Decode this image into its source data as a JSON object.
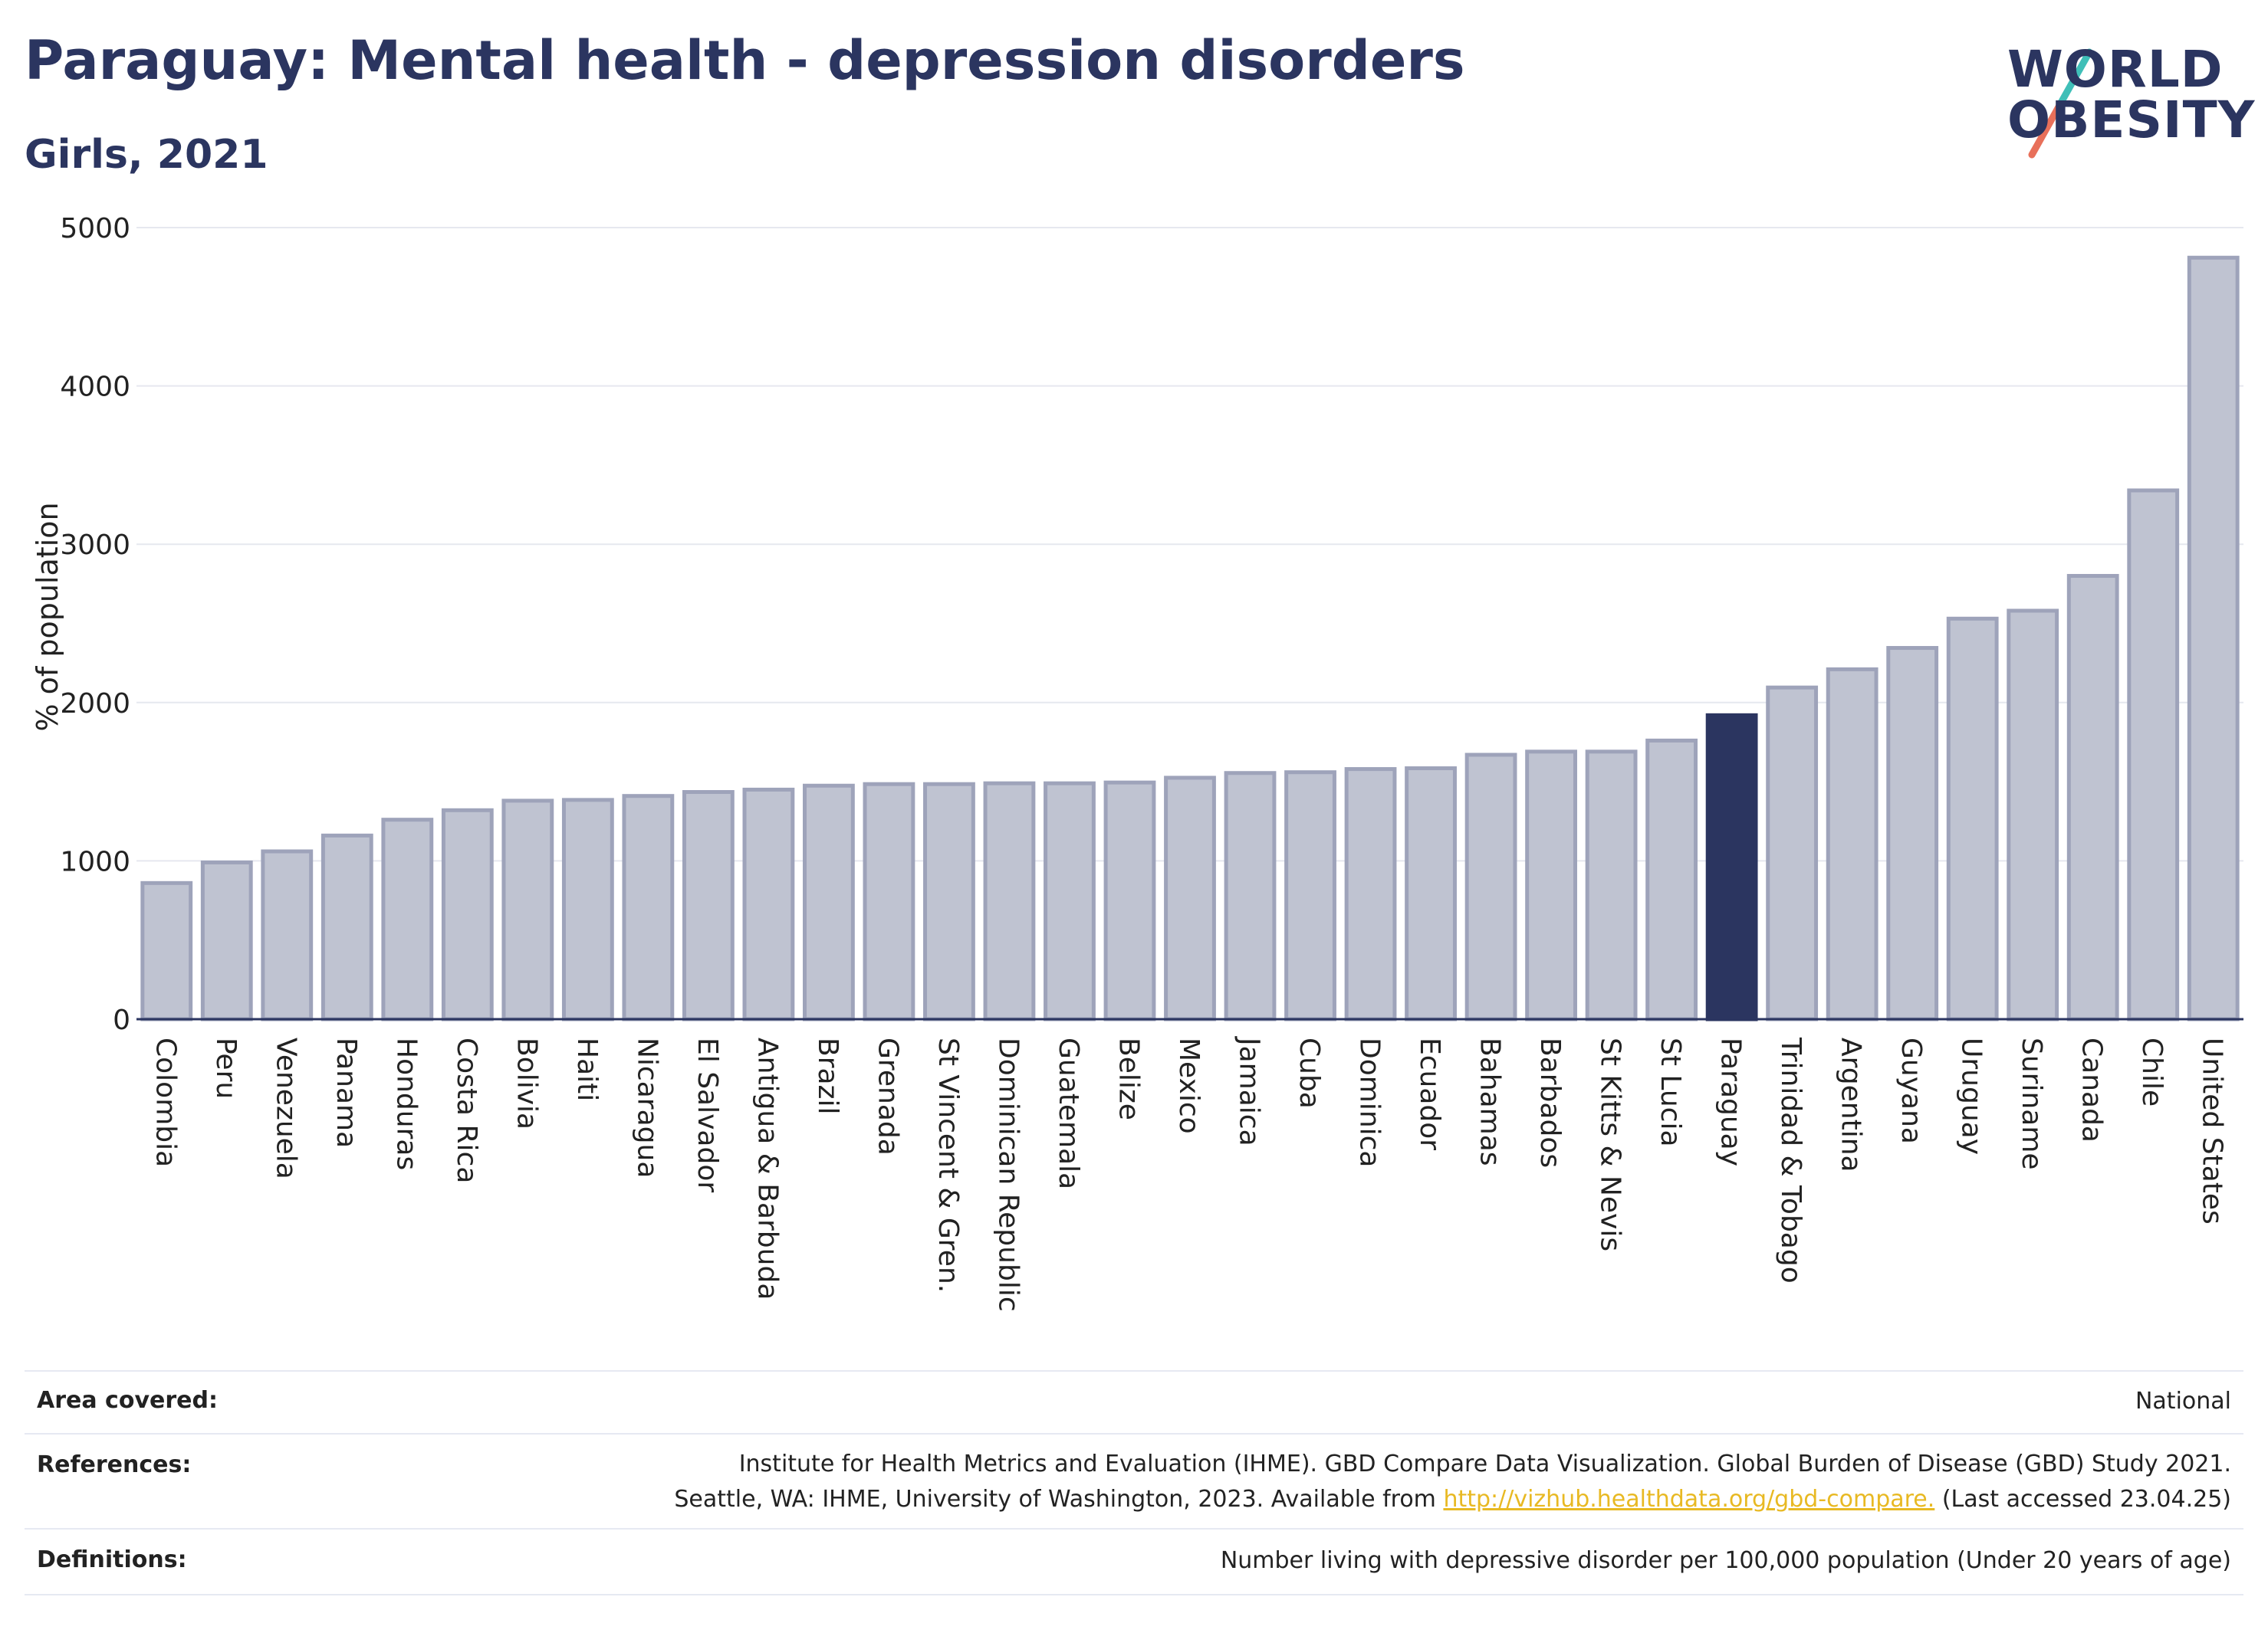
{
  "header": {
    "title": "Paraguay: Mental health - depression disorders",
    "subtitle": "Girls, 2021"
  },
  "logo": {
    "line1": "WORLD",
    "line2": "OBESITY"
  },
  "chart_data": {
    "type": "bar",
    "ylabel": "% of population",
    "xlabel": "",
    "ylim": [
      0,
      5000
    ],
    "yticks": [
      0,
      1000,
      2000,
      3000,
      4000,
      5000
    ],
    "grid": true,
    "highlight": "Paraguay",
    "colors": {
      "bar": "#bfc3d1",
      "bar_edge": "#9ea3ba",
      "highlight": "#2b3560",
      "grid": "#e6e8ef",
      "axis": "#2b3560"
    },
    "categories": [
      "Colombia",
      "Peru",
      "Venezuela",
      "Panama",
      "Honduras",
      "Costa Rica",
      "Bolivia",
      "Haiti",
      "Nicaragua",
      "El Salvador",
      "Antigua & Barbuda",
      "Brazil",
      "Grenada",
      "St Vincent & Gren.",
      "Dominican Republic",
      "Guatemala",
      "Belize",
      "Mexico",
      "Jamaica",
      "Cuba",
      "Dominica",
      "Ecuador",
      "Bahamas",
      "Barbados",
      "St Kitts & Nevis",
      "St Lucia",
      "Paraguay",
      "Trinidad & Tobago",
      "Argentina",
      "Guyana",
      "Uruguay",
      "Suriname",
      "Canada",
      "Chile",
      "United States"
    ],
    "values": [
      860,
      990,
      1060,
      1160,
      1260,
      1320,
      1380,
      1385,
      1410,
      1435,
      1450,
      1475,
      1485,
      1485,
      1490,
      1490,
      1495,
      1525,
      1555,
      1560,
      1580,
      1585,
      1670,
      1690,
      1690,
      1760,
      1920,
      2095,
      2210,
      2345,
      2530,
      2580,
      2800,
      3340,
      4810
    ]
  },
  "info": {
    "area_label": "Area covered:",
    "area_value": "National",
    "references_label": "References:",
    "references_line1": "Institute for Health Metrics and Evaluation (IHME). GBD Compare Data Visualization. Global Burden of Disease (GBD) Study 2021.",
    "references_line2_pre": "Seattle, WA: IHME, University of Washington, 2023. Available from ",
    "references_link": "http://vizhub.healthdata.org/gbd-compare.",
    "references_line2_post": " (Last accessed 23.04.25)",
    "definitions_label": "Definitions:",
    "definitions_value": "Number living with depressive disorder per 100,000 population (Under 20 years of age)"
  }
}
